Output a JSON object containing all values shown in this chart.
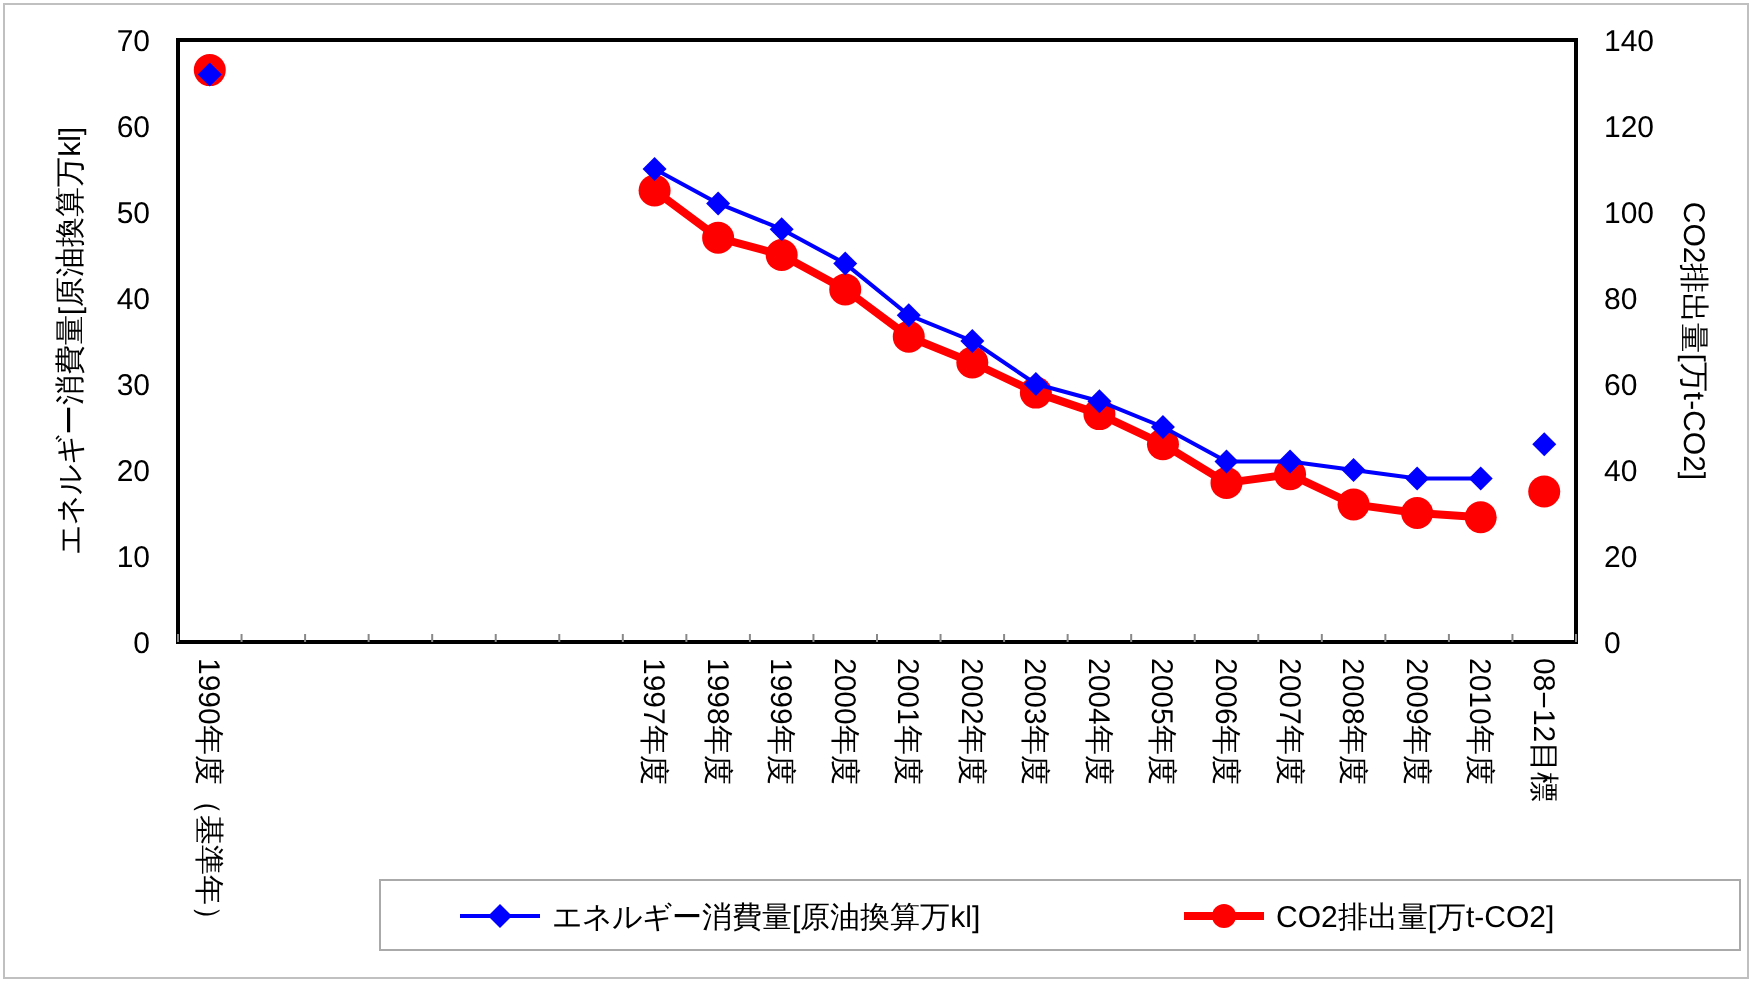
{
  "chart_data": {
    "type": "line",
    "xlabel": null,
    "ylabel": "エネルギー消費量[原油換算万kl]",
    "y2label": "CO2排出量[万t-CO2]",
    "categories": [
      "1990年度（基準年）",
      null,
      null,
      null,
      null,
      null,
      null,
      "1997年度",
      "1998年度",
      "1999年度",
      "2000年度",
      "2001年度",
      "2002年度",
      "2003年度",
      "2004年度",
      "2005年度",
      "2006年度",
      "2007年度",
      "2008年度",
      "2009年度",
      "2010年度",
      "08−12目標"
    ],
    "series": [
      {
        "name": "エネルギー消費量[原油換算万kl]",
        "color": "#0000ff",
        "marker": "diamond",
        "values": [
          66,
          null,
          null,
          null,
          null,
          null,
          null,
          55,
          51,
          48,
          44,
          38,
          35,
          30,
          28,
          25,
          21,
          21,
          20,
          19,
          19,
          null
        ]
      },
      {
        "name": "CO2排出量[万t-CO2]",
        "color": "#ff0000",
        "marker": "circle",
        "axis": "y2",
        "values": [
          133,
          null,
          null,
          null,
          null,
          null,
          null,
          105,
          94,
          90,
          82,
          71,
          65,
          58,
          53,
          46,
          37,
          39,
          32,
          30,
          29,
          null
        ]
      },
      {
        "type": "scatter",
        "color": "#0000ff",
        "marker": "diamond",
        "values": [
          null,
          null,
          null,
          null,
          null,
          null,
          null,
          null,
          null,
          null,
          null,
          null,
          null,
          null,
          null,
          null,
          null,
          null,
          null,
          null,
          null,
          23
        ]
      },
      {
        "type": "scatter",
        "color": "#ff0000",
        "marker": "circle",
        "axis": "y2",
        "values": [
          null,
          null,
          null,
          null,
          null,
          null,
          null,
          null,
          null,
          null,
          null,
          null,
          null,
          null,
          null,
          null,
          null,
          null,
          null,
          null,
          null,
          35
        ]
      }
    ],
    "ylim": [
      0,
      70
    ],
    "yticks": [
      0,
      10,
      20,
      30,
      40,
      50,
      60,
      70
    ],
    "y2lim": [
      0,
      140
    ],
    "y2ticks": [
      0,
      20,
      40,
      60,
      80,
      100,
      120,
      140
    ],
    "legend": "bottom",
    "grid": false
  }
}
